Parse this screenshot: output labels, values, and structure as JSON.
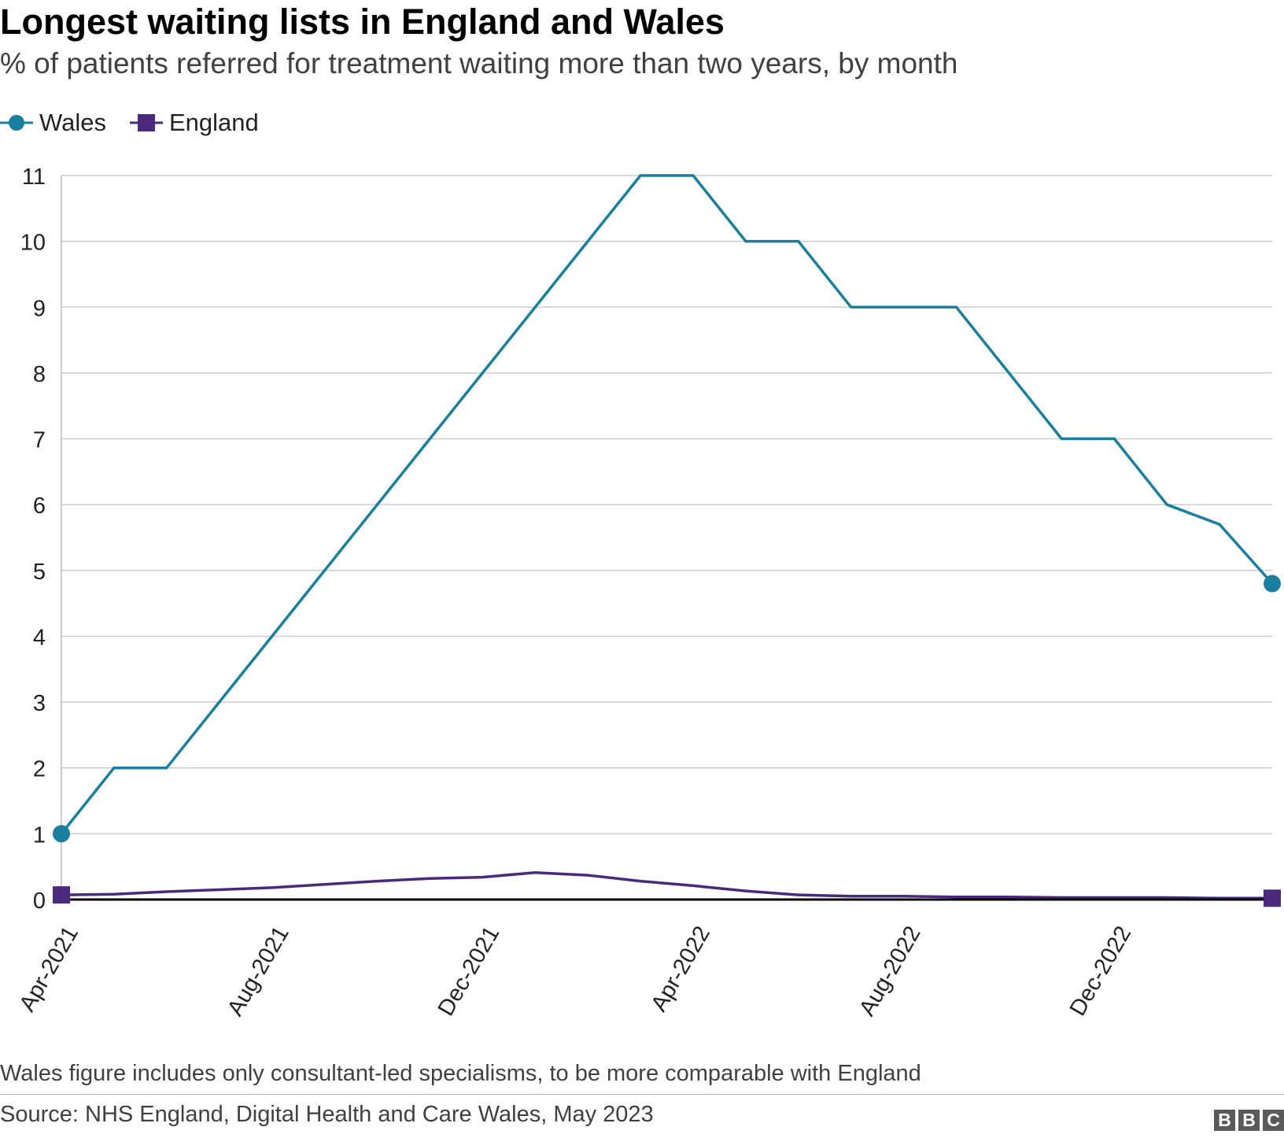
{
  "header": {
    "title": "Longest waiting lists in England and Wales",
    "subtitle": "% of patients referred for treatment waiting more than two years, by month"
  },
  "legend": {
    "items": [
      {
        "label": "Wales",
        "color": "#1a7f9f",
        "marker": "circle"
      },
      {
        "label": "England",
        "color": "#4b2a7d",
        "marker": "square"
      }
    ]
  },
  "chart_data": {
    "type": "line",
    "title": "Longest waiting lists in England and Wales",
    "subtitle": "% of patients referred for treatment waiting more than two years, by month",
    "xlabel": "",
    "ylabel": "",
    "x": [
      "Apr-2021",
      "May-2021",
      "Jun-2021",
      "Jul-2021",
      "Aug-2021",
      "Sep-2021",
      "Oct-2021",
      "Nov-2021",
      "Dec-2021",
      "Jan-2022",
      "Feb-2022",
      "Mar-2022",
      "Apr-2022",
      "May-2022",
      "Jun-2022",
      "Jul-2022",
      "Aug-2022",
      "Sep-2022",
      "Oct-2022",
      "Nov-2022",
      "Dec-2022",
      "Jan-2023",
      "Feb-2023",
      "Mar-2023"
    ],
    "x_tick_labels": [
      "Apr-2021",
      "Aug-2021",
      "Dec-2021",
      "Apr-2022",
      "Aug-2022",
      "Dec-2022"
    ],
    "x_tick_indices": [
      0,
      4,
      8,
      12,
      16,
      20
    ],
    "ylim": [
      0,
      11
    ],
    "y_ticks": [
      0,
      1,
      2,
      3,
      4,
      5,
      6,
      7,
      8,
      9,
      10,
      11
    ],
    "grid": true,
    "legend_position": "top-left",
    "series": [
      {
        "name": "Wales",
        "color": "#1a7f9f",
        "marker": "circle",
        "values": [
          1,
          2,
          2,
          3,
          4,
          5,
          6,
          7,
          8,
          9,
          10,
          11,
          11,
          10,
          10,
          9,
          9,
          9,
          8,
          7,
          7,
          6,
          5.7,
          4.8
        ]
      },
      {
        "name": "England",
        "color": "#4b2a7d",
        "marker": "square",
        "values": [
          0.07,
          0.08,
          0.12,
          0.15,
          0.18,
          0.23,
          0.28,
          0.32,
          0.34,
          0.41,
          0.37,
          0.28,
          0.21,
          0.13,
          0.07,
          0.05,
          0.05,
          0.04,
          0.04,
          0.03,
          0.03,
          0.03,
          0.02,
          0.02
        ]
      }
    ]
  },
  "footer": {
    "note": "Wales figure includes only consultant-led specialisms, to be more comparable with England",
    "source": "Source: NHS England, Digital Health and Care Wales, May 2023",
    "logo_letters": [
      "B",
      "B",
      "C"
    ]
  }
}
